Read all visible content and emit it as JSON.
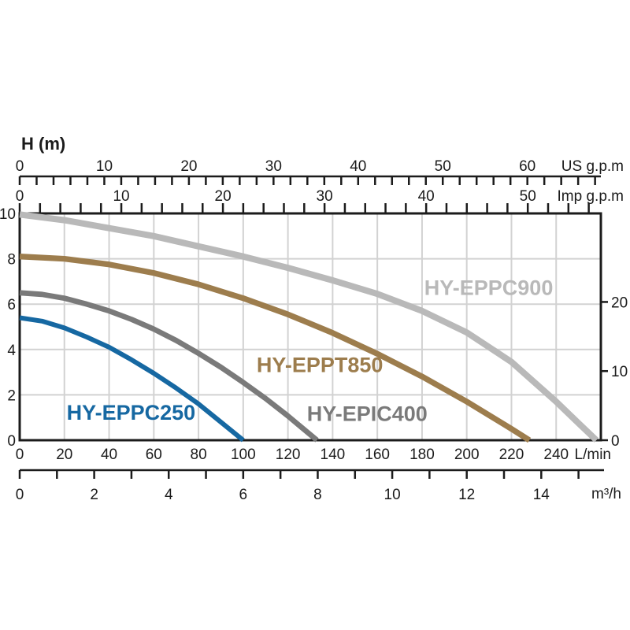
{
  "page": {
    "background": "#ffffff"
  },
  "chart_data": {
    "type": "line",
    "title": "",
    "description": "Submersible pump performance curves: head H (m / ft) versus flow (L/min, m³/h, US g.p.m, Imp g.p.m)",
    "colors": {
      "axis": "#1b1b1b",
      "grid": "#d2d2d2",
      "background": "#ffffff"
    },
    "axes": {
      "head_m": {
        "title": "H (m)",
        "tick_labels": [
          0,
          2,
          4,
          6,
          8,
          10
        ],
        "max": 10,
        "grid_step": 2
      },
      "head_ft": {
        "tick_labels": [
          0,
          10,
          20
        ]
      },
      "flow_lmin": {
        "unit": "L/min",
        "tick_labels": [
          0,
          20,
          40,
          60,
          80,
          100,
          120,
          140,
          160,
          180,
          200,
          220,
          240
        ],
        "max": 260,
        "grid_step": 20
      },
      "flow_m3h": {
        "unit": "m³/h",
        "tick_labels": [
          0,
          2,
          4,
          6,
          8,
          10,
          12,
          14
        ],
        "minor_step": 1,
        "minor_max": 15
      },
      "flow_usgpm": {
        "unit": "US g.p.m",
        "tick_labels": [
          0,
          10,
          20,
          30,
          40,
          50,
          60
        ],
        "minor_step": 2,
        "minor_max": 68
      },
      "flow_impgpm": {
        "unit": "Imp g.p.m",
        "tick_labels": [
          0,
          10,
          20,
          30,
          40,
          50
        ],
        "minor_step": 2,
        "minor_max": 56
      }
    },
    "series": [
      {
        "name": "HY-EPPC900",
        "color": "#b9b9b9",
        "label_q": 181,
        "label_h": 6.4,
        "points": [
          [
            0,
            9.95
          ],
          [
            20,
            9.7
          ],
          [
            40,
            9.35
          ],
          [
            60,
            9.0
          ],
          [
            80,
            8.55
          ],
          [
            100,
            8.1
          ],
          [
            120,
            7.6
          ],
          [
            140,
            7.05
          ],
          [
            160,
            6.45
          ],
          [
            180,
            5.7
          ],
          [
            200,
            4.75
          ],
          [
            220,
            3.45
          ],
          [
            240,
            1.7
          ],
          [
            250,
            0.75
          ],
          [
            258,
            0
          ]
        ]
      },
      {
        "name": "HY-EPPT850",
        "color": "#9d7d4d",
        "label_q": 106,
        "label_h": 3.0,
        "points": [
          [
            0,
            8.1
          ],
          [
            20,
            8.0
          ],
          [
            40,
            7.75
          ],
          [
            60,
            7.37
          ],
          [
            80,
            6.87
          ],
          [
            100,
            6.26
          ],
          [
            120,
            5.55
          ],
          [
            140,
            4.73
          ],
          [
            160,
            3.81
          ],
          [
            180,
            2.81
          ],
          [
            200,
            1.7
          ],
          [
            220,
            0.5
          ],
          [
            228,
            0
          ]
        ]
      },
      {
        "name": "HY-EPIC400",
        "color": "#7a7a7a",
        "label_q": 128.5,
        "label_h": 0.85,
        "points": [
          [
            0,
            6.5
          ],
          [
            10,
            6.43
          ],
          [
            20,
            6.26
          ],
          [
            30,
            6.0
          ],
          [
            40,
            5.7
          ],
          [
            50,
            5.33
          ],
          [
            60,
            4.9
          ],
          [
            70,
            4.4
          ],
          [
            80,
            3.83
          ],
          [
            90,
            3.22
          ],
          [
            100,
            2.55
          ],
          [
            110,
            1.84
          ],
          [
            120,
            1.07
          ],
          [
            133,
            0
          ]
        ]
      },
      {
        "name": "HY-EPPC250",
        "color": "#1668a2",
        "label_q": 21,
        "label_h": 0.9,
        "points": [
          [
            0,
            5.4
          ],
          [
            10,
            5.25
          ],
          [
            20,
            4.95
          ],
          [
            30,
            4.55
          ],
          [
            40,
            4.1
          ],
          [
            50,
            3.55
          ],
          [
            60,
            2.95
          ],
          [
            70,
            2.3
          ],
          [
            80,
            1.6
          ],
          [
            90,
            0.8
          ],
          [
            100,
            0
          ]
        ]
      }
    ]
  }
}
